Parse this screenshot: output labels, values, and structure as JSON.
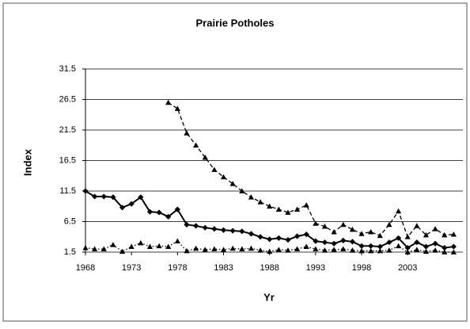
{
  "chart_data": {
    "type": "line",
    "title": "Prairie Potholes",
    "x_label": "Yr",
    "y_label": "Index",
    "x": [
      1968,
      1969,
      1970,
      1971,
      1972,
      1973,
      1974,
      1975,
      1976,
      1977,
      1978,
      1979,
      1980,
      1981,
      1982,
      1983,
      1984,
      1985,
      1986,
      1987,
      1988,
      1989,
      1990,
      1991,
      1992,
      1993,
      1994,
      1995,
      1996,
      1997,
      1998,
      1999,
      2000,
      2001,
      2002,
      2003,
      2004,
      2005,
      2006,
      2007,
      2008
    ],
    "series": [
      {
        "color": "#000000",
        "dash": "solid",
        "marker": "diamond",
        "values": [
          11.5,
          10.6,
          10.6,
          10.5,
          8.8,
          9.4,
          10.5,
          8.1,
          8.0,
          7.3,
          8.5,
          6.0,
          5.8,
          5.5,
          5.3,
          5.1,
          5.0,
          4.9,
          4.5,
          4.0,
          3.6,
          3.8,
          3.5,
          4.1,
          4.4,
          3.3,
          3.1,
          2.9,
          3.4,
          3.2,
          2.5,
          2.5,
          2.4,
          3.1,
          3.8,
          2.2,
          3.1,
          2.4,
          2.9,
          2.2,
          2.4
        ]
      },
      {
        "color": "#000000",
        "dash": "dashed",
        "marker": "triangle",
        "values": [
          null,
          null,
          null,
          null,
          null,
          null,
          null,
          null,
          null,
          26.0,
          25.0,
          21.0,
          19.0,
          17.0,
          15.0,
          13.8,
          12.7,
          11.5,
          10.5,
          9.7,
          9.0,
          8.5,
          8.0,
          8.5,
          9.2,
          6.2,
          5.7,
          4.8,
          6.0,
          5.2,
          4.5,
          4.8,
          4.2,
          6.0,
          8.2,
          4.0,
          5.8,
          4.3,
          5.3,
          4.3,
          4.4
        ]
      },
      {
        "color": "#000000",
        "dash": "dotted",
        "marker": "triangle",
        "values": [
          2.2,
          2.0,
          2.0,
          2.7,
          1.6,
          2.4,
          3.0,
          2.4,
          2.5,
          2.4,
          3.3,
          1.7,
          2.1,
          1.9,
          2.0,
          1.9,
          2.1,
          2.0,
          2.1,
          1.8,
          1.6,
          1.9,
          1.8,
          2.0,
          2.4,
          2.0,
          1.8,
          1.9,
          2.0,
          1.8,
          1.7,
          1.7,
          1.7,
          1.8,
          2.5,
          1.5,
          1.9,
          1.6,
          1.8,
          1.5,
          1.5
        ]
      }
    ],
    "xlim": [
      1968,
      2009
    ],
    "xticks": [
      1968,
      1973,
      1978,
      1983,
      1988,
      1993,
      1998,
      2003
    ],
    "ylim": [
      1.5,
      31.5
    ],
    "yticks": [
      1.5,
      6.5,
      11.5,
      16.5,
      21.5,
      26.5,
      31.5
    ],
    "grid": true
  }
}
